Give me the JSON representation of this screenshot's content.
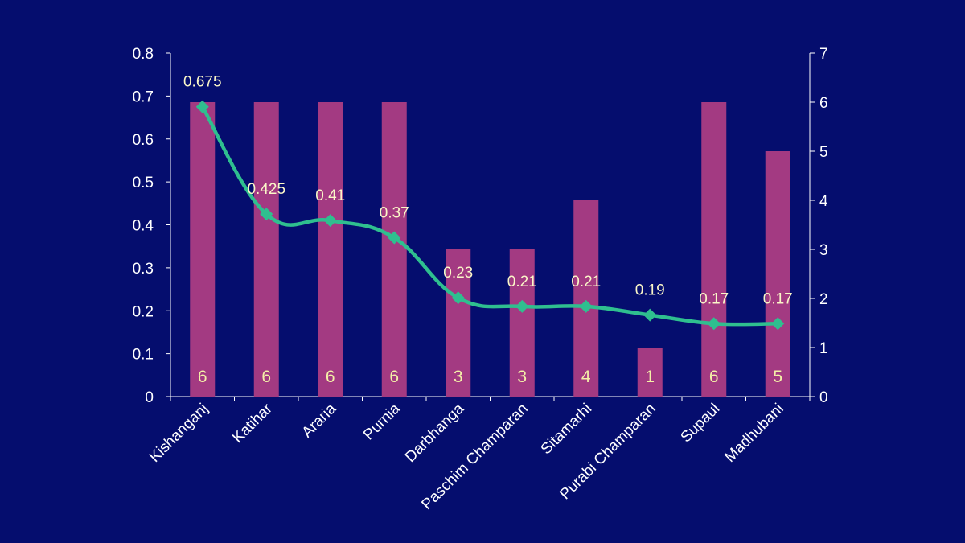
{
  "chart_data": {
    "type": "bar",
    "title": "",
    "categories": [
      "Kishanganj",
      "Katihar",
      "Araria",
      "Purnia",
      "Darbhanga",
      "Paschim Champaran",
      "Sitamarhi",
      "Purabi Champaran",
      "Supaul",
      "Madhubani"
    ],
    "series": [
      {
        "type": "bar",
        "axis": "right",
        "values": [
          6,
          6,
          6,
          6,
          3,
          3,
          4,
          1,
          6,
          5
        ],
        "labels": [
          "6",
          "6",
          "6",
          "6",
          "3",
          "3",
          "4",
          "1",
          "6",
          "5"
        ],
        "color": "#a33a82"
      },
      {
        "type": "line",
        "axis": "left",
        "smooth": true,
        "marker": "diamond",
        "values": [
          0.675,
          0.425,
          0.41,
          0.37,
          0.23,
          0.21,
          0.21,
          0.19,
          0.17,
          0.17
        ],
        "labels": [
          "0.675",
          "0.425",
          "0.41",
          "0.37",
          "0.23",
          "0.21",
          "0.21",
          "0.19",
          "0.17",
          "0.17"
        ],
        "color": "#2fbf8f"
      }
    ],
    "y_left": {
      "range": [
        0,
        0.8
      ],
      "ticks": [
        "0",
        "0.1",
        "0.2",
        "0.3",
        "0.4",
        "0.5",
        "0.6",
        "0.7",
        "0.8"
      ]
    },
    "y_right": {
      "range": [
        0,
        7
      ],
      "ticks": [
        "0",
        "1",
        "2",
        "3",
        "4",
        "5",
        "6",
        "7"
      ]
    },
    "xlabel": "",
    "ylabel": "",
    "grid": false,
    "legend": "none",
    "colors": {
      "background": "#050d6e",
      "axis": "#ffffff",
      "bar": "#a33a82",
      "line": "#2fbf8f",
      "bar_label": "#f4f1a8",
      "line_label": "#fbf7c8"
    }
  }
}
